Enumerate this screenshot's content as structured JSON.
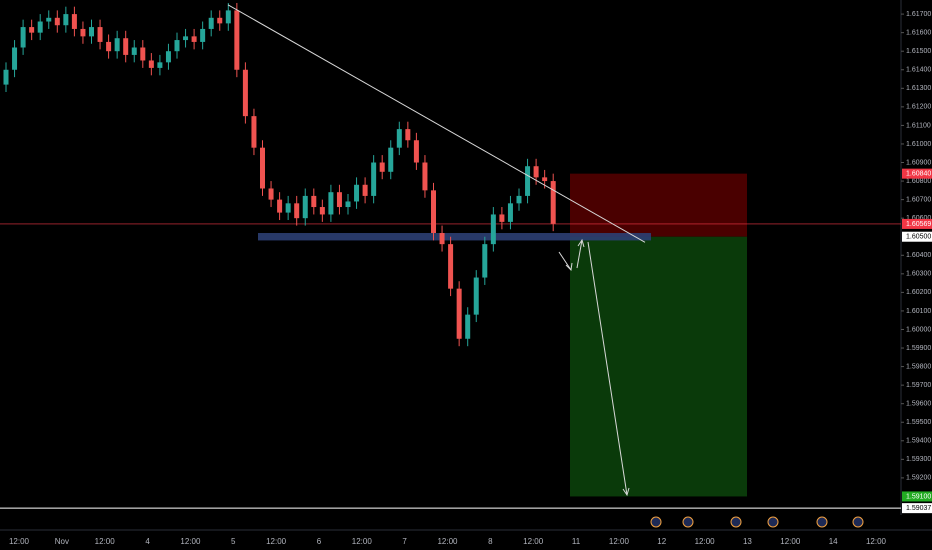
{
  "chart_data": {
    "type": "candlestick",
    "time_labels": [
      "12:00",
      "Nov",
      "12:00",
      "4",
      "12:00",
      "5",
      "12:00",
      "6",
      "12:00",
      "7",
      "12:00",
      "8",
      "12:00",
      "11",
      "12:00",
      "12",
      "12:00",
      "13",
      "12:00",
      "14",
      "12:00"
    ],
    "open": [
      1.6132,
      1.614,
      1.6152,
      1.6163,
      1.616,
      1.6166,
      1.6168,
      1.6164,
      1.617,
      1.6162,
      1.6158,
      1.6163,
      1.6155,
      1.615,
      1.6157,
      1.6148,
      1.6152,
      1.6145,
      1.6141,
      1.6144,
      1.615,
      1.6156,
      1.6158,
      1.6155,
      1.6162,
      1.6168,
      1.6165,
      1.6172,
      1.614,
      1.6115,
      1.6098,
      1.6076,
      1.607,
      1.6063,
      1.6068,
      1.606,
      1.6072,
      1.6066,
      1.6062,
      1.6074,
      1.6066,
      1.6069,
      1.6078,
      1.6072,
      1.609,
      1.6085,
      1.6098,
      1.6108,
      1.6102,
      1.609,
      1.6075,
      1.6052,
      1.6046,
      1.6022,
      1.5995,
      1.6008,
      1.6028,
      1.6046,
      1.6062,
      1.6058,
      1.6068,
      1.6072,
      1.6088,
      1.6082,
      1.608
    ],
    "high": [
      1.6144,
      1.6156,
      1.6167,
      1.6167,
      1.617,
      1.6172,
      1.6172,
      1.6174,
      1.6174,
      1.6166,
      1.6167,
      1.6167,
      1.6159,
      1.6161,
      1.6161,
      1.6156,
      1.6156,
      1.6149,
      1.6148,
      1.6154,
      1.616,
      1.6162,
      1.6162,
      1.6166,
      1.6172,
      1.6172,
      1.6176,
      1.6176,
      1.6144,
      1.6119,
      1.6102,
      1.608,
      1.6074,
      1.6072,
      1.6072,
      1.6076,
      1.6076,
      1.607,
      1.6078,
      1.6078,
      1.6073,
      1.6082,
      1.6082,
      1.6094,
      1.6094,
      1.6102,
      1.6112,
      1.6112,
      1.6106,
      1.6094,
      1.6079,
      1.6056,
      1.605,
      1.6026,
      1.6012,
      1.6032,
      1.605,
      1.6066,
      1.6066,
      1.6072,
      1.6076,
      1.6092,
      1.6092,
      1.6086,
      1.6084
    ],
    "low": [
      1.6128,
      1.6136,
      1.6148,
      1.6156,
      1.6156,
      1.6162,
      1.616,
      1.616,
      1.6158,
      1.6154,
      1.6154,
      1.6151,
      1.6146,
      1.6146,
      1.6144,
      1.6144,
      1.6141,
      1.6137,
      1.6137,
      1.614,
      1.6146,
      1.6152,
      1.6151,
      1.6151,
      1.6158,
      1.6161,
      1.6161,
      1.6136,
      1.6111,
      1.6094,
      1.6072,
      1.6066,
      1.6059,
      1.6059,
      1.6056,
      1.6056,
      1.6062,
      1.6058,
      1.6058,
      1.6062,
      1.6062,
      1.6065,
      1.6068,
      1.6068,
      1.6081,
      1.6081,
      1.6094,
      1.6098,
      1.6086,
      1.6071,
      1.6048,
      1.6042,
      1.6018,
      1.5991,
      1.5991,
      1.6004,
      1.6024,
      1.6042,
      1.6054,
      1.6054,
      1.6064,
      1.6068,
      1.6078,
      1.6076,
      1.6053
    ],
    "close": [
      1.614,
      1.6152,
      1.6163,
      1.616,
      1.6166,
      1.6168,
      1.6164,
      1.617,
      1.6162,
      1.6158,
      1.6163,
      1.6155,
      1.615,
      1.6157,
      1.6148,
      1.6152,
      1.6145,
      1.6141,
      1.6144,
      1.615,
      1.6156,
      1.6158,
      1.6155,
      1.6162,
      1.6168,
      1.6165,
      1.6172,
      1.614,
      1.6115,
      1.6098,
      1.6076,
      1.607,
      1.6063,
      1.6068,
      1.606,
      1.6072,
      1.6066,
      1.6062,
      1.6074,
      1.6066,
      1.6069,
      1.6078,
      1.6072,
      1.609,
      1.6085,
      1.6098,
      1.6108,
      1.6102,
      1.609,
      1.6075,
      1.6052,
      1.6046,
      1.6022,
      1.5995,
      1.6008,
      1.6028,
      1.6046,
      1.6062,
      1.6058,
      1.6068,
      1.6072,
      1.6088,
      1.6082,
      1.608,
      1.6057
    ],
    "up_color": "#26a69a",
    "down_color": "#ef5350",
    "ylim": [
      1.59,
      1.61776
    ],
    "yticks": [
      {
        "value": 1.617,
        "label": "1.61700"
      },
      {
        "value": 1.616,
        "label": "1.61600"
      },
      {
        "value": 1.615,
        "label": "1.61500"
      },
      {
        "value": 1.614,
        "label": "1.61400"
      },
      {
        "value": 1.613,
        "label": "1.61300"
      },
      {
        "value": 1.612,
        "label": "1.61200"
      },
      {
        "value": 1.611,
        "label": "1.61100"
      },
      {
        "value": 1.61,
        "label": "1.61000"
      },
      {
        "value": 1.609,
        "label": "1.60900"
      },
      {
        "value": 1.608,
        "label": "1.60800"
      },
      {
        "value": 1.607,
        "label": "1.60700"
      },
      {
        "value": 1.606,
        "label": "1.60600"
      },
      {
        "value": 1.604,
        "label": "1.60400"
      },
      {
        "value": 1.603,
        "label": "1.60300"
      },
      {
        "value": 1.602,
        "label": "1.60200"
      },
      {
        "value": 1.601,
        "label": "1.60100"
      },
      {
        "value": 1.6,
        "label": "1.60000"
      },
      {
        "value": 1.599,
        "label": "1.59900"
      },
      {
        "value": 1.598,
        "label": "1.59800"
      },
      {
        "value": 1.597,
        "label": "1.59700"
      },
      {
        "value": 1.596,
        "label": "1.59600"
      },
      {
        "value": 1.595,
        "label": "1.59500"
      },
      {
        "value": 1.594,
        "label": "1.59400"
      },
      {
        "value": 1.593,
        "label": "1.59300"
      },
      {
        "value": 1.592,
        "label": "1.59200"
      }
    ],
    "stop_label": {
      "value": 1.6084,
      "label": "1.60840",
      "color": "#f23645"
    },
    "current_label": {
      "value": 1.60569,
      "label": "1.60569",
      "color": "#f23645"
    },
    "entry_label": {
      "value": 1.605,
      "label": "1.60500",
      "color": "#ffffff"
    },
    "target_label": {
      "value": 1.591,
      "label": "1.59100",
      "color": "#22ab22"
    },
    "line_label": {
      "value": 1.59037,
      "label": "1.59037",
      "color": "#ffffff"
    },
    "trendline": [
      1.6175,
      1.6047
    ],
    "zone": [
      1.6052,
      1.6048
    ]
  }
}
